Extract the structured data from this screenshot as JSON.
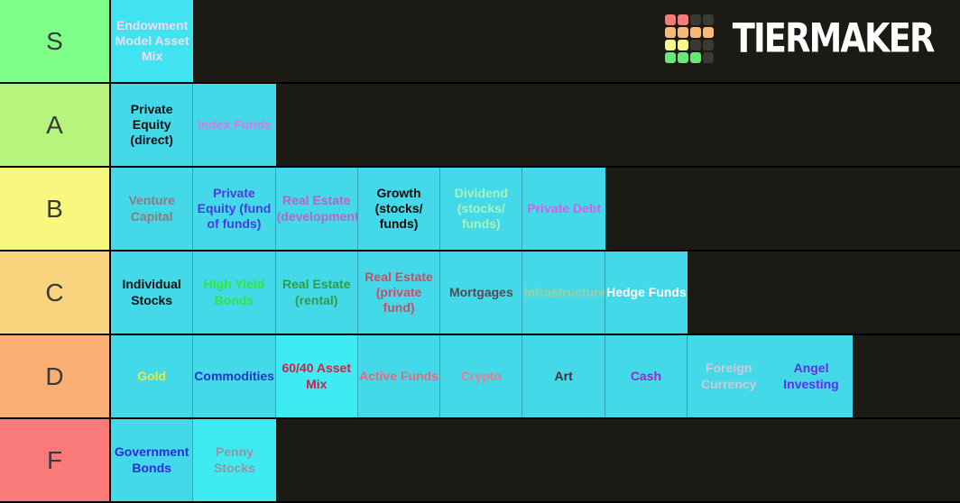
{
  "logo": {
    "text": "TIERMAKER",
    "grid_colors": {
      "red": "#f47c7c",
      "orange": "#f8b878",
      "yellow": "#f8f88a",
      "green": "#68e878",
      "dark": "#3a3a34"
    },
    "grid": [
      [
        "red",
        "red",
        "dark",
        "dark"
      ],
      [
        "orange",
        "orange",
        "orange",
        "orange"
      ],
      [
        "yellow",
        "yellow",
        "dark",
        "dark"
      ],
      [
        "green",
        "green",
        "green",
        "dark"
      ]
    ]
  },
  "colors": {
    "background": "#1b1a14",
    "row_separator": "#000000",
    "tile_default": "#44d9e8"
  },
  "tiers": [
    {
      "label": "S",
      "label_color": "#80ff8b",
      "items": [
        {
          "text": "Endowment Model Asset Mix",
          "color": "#f0dcec",
          "bg": "#41e3f0"
        }
      ]
    },
    {
      "label": "A",
      "label_color": "#b7f47e",
      "items": [
        {
          "text": "Private Equity (direct)",
          "color": "#101010"
        },
        {
          "text": "Index Funds",
          "color": "#cf7ce8"
        }
      ]
    },
    {
      "label": "B",
      "label_color": "#f8f87e",
      "items": [
        {
          "text": "Venture Capital",
          "color": "#8c7b7e"
        },
        {
          "text": "Private Equity (fund of funds)",
          "color": "#4b3be0"
        },
        {
          "text": "Real Estate (development)",
          "color": "#b168c8"
        },
        {
          "text": "Growth (stocks/funds)",
          "color": "#0a0a0a"
        },
        {
          "text": "Dividend (stocks/funds)",
          "color": "#a8f2b8"
        },
        {
          "text": "Private Debt",
          "color": "#e455ea"
        }
      ]
    },
    {
      "label": "C",
      "label_color": "#fad47e",
      "items": [
        {
          "text": "Individual Stocks",
          "color": "#101010"
        },
        {
          "text": "High Yield Bonds",
          "color": "#33e633"
        },
        {
          "text": "Real Estate (rental)",
          "color": "#2e9e40"
        },
        {
          "text": "Real Estate (private fund)",
          "color": "#d04a68"
        },
        {
          "text": "Mortgages",
          "color": "#4e4e52"
        },
        {
          "text": "Infrastructure",
          "color": "#9ccfa0"
        },
        {
          "text": "Hedge Funds",
          "color": "#ffffff"
        }
      ]
    },
    {
      "label": "D",
      "label_color": "#fbaf72",
      "items": [
        {
          "text": "Gold",
          "color": "#e8e83c"
        },
        {
          "text": "Commodities",
          "color": "#2533cc"
        },
        {
          "text": "60/40 Asset Mix",
          "color": "#cc2244",
          "bg": "#3eebf3"
        },
        {
          "text": "Active Funds",
          "color": "#ef6679"
        },
        {
          "text": "Crypto",
          "color": "#f27a8c"
        },
        {
          "text": "Art",
          "color": "#463038"
        },
        {
          "text": "Cash",
          "color": "#9c26cc"
        },
        {
          "text": "Foreign Currency",
          "color": "#cdc9d8",
          "noDivider": true
        },
        {
          "text": "Angel Investing",
          "color": "#5c30e8"
        }
      ]
    },
    {
      "label": "F",
      "label_color": "#fa7a7a",
      "items": [
        {
          "text": "Government Bonds",
          "color": "#3524ea"
        },
        {
          "text": "Penny Stocks",
          "color": "#9894a0",
          "bg": "#3feaf0"
        }
      ]
    }
  ]
}
